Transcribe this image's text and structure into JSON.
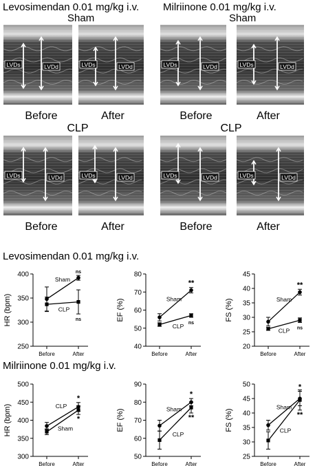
{
  "top": {
    "left_title": "Levosimendan 0.01 mg/kg i.v.",
    "right_title": "Milriinone 0.01 mg/kg i.v.",
    "sham_label": "Sham",
    "clp_label": "CLP",
    "before_label": "Before",
    "after_label": "After",
    "lvds_label": "LVDs",
    "lvdd_label": "LVDd"
  },
  "sections": [
    {
      "title": "Levosimendan 0.01 mg/kg i.v."
    },
    {
      "title": "Milriinone 0.01 mg/kg i.v."
    }
  ],
  "chart_data": [
    {
      "type": "line",
      "section": 0,
      "categories": [
        "Before",
        "After"
      ],
      "ylabel": "HR (bpm)",
      "ylim": [
        250,
        400
      ],
      "yticks": [
        250,
        300,
        350,
        400
      ],
      "series": [
        {
          "name": "Sham",
          "values": [
            348,
            392
          ],
          "err": [
            25,
            5
          ]
        },
        {
          "name": "CLP",
          "values": [
            337,
            342
          ],
          "err": [
            15,
            25
          ]
        }
      ],
      "annotations": [
        {
          "series": "Sham",
          "point": "After",
          "text": "ns"
        },
        {
          "series": "CLP",
          "point": "After",
          "text": "ns"
        }
      ]
    },
    {
      "type": "line",
      "section": 0,
      "categories": [
        "Before",
        "After"
      ],
      "ylabel": "EF (%)",
      "ylim": [
        40,
        80
      ],
      "yticks": [
        40,
        50,
        60,
        70,
        80
      ],
      "series": [
        {
          "name": "Sham",
          "values": [
            56,
            71
          ],
          "err": [
            2,
            1.5
          ]
        },
        {
          "name": "CLP",
          "values": [
            52,
            57
          ],
          "err": [
            1,
            1
          ]
        }
      ],
      "annotations": [
        {
          "series": "Sham",
          "point": "After",
          "text": "**"
        },
        {
          "series": "CLP",
          "point": "After",
          "text": "ns"
        }
      ]
    },
    {
      "type": "line",
      "section": 0,
      "categories": [
        "Before",
        "After"
      ],
      "ylabel": "FS (%)",
      "ylim": [
        20,
        45
      ],
      "yticks": [
        20,
        25,
        30,
        35,
        40,
        45
      ],
      "series": [
        {
          "name": "Sham",
          "values": [
            28.5,
            38.7
          ],
          "err": [
            1.5,
            1
          ]
        },
        {
          "name": "CLP",
          "values": [
            26,
            29
          ],
          "err": [
            0.5,
            0.8
          ]
        }
      ],
      "annotations": [
        {
          "series": "Sham",
          "point": "After",
          "text": "**"
        },
        {
          "series": "CLP",
          "point": "After",
          "text": "ns"
        }
      ]
    },
    {
      "type": "line",
      "section": 1,
      "categories": [
        "Before",
        "After"
      ],
      "ylabel": "HR (bpm)",
      "ylim": [
        300,
        500
      ],
      "yticks": [
        300,
        350,
        400,
        450,
        500
      ],
      "series": [
        {
          "name": "CLP",
          "values": [
            384,
            437
          ],
          "err": [
            10,
            12
          ]
        },
        {
          "name": "Sham",
          "values": [
            368,
            428
          ],
          "err": [
            8,
            12
          ]
        }
      ],
      "annotations": [
        {
          "series": "CLP",
          "point": "After",
          "text": "*"
        },
        {
          "series": "Sham",
          "point": "After",
          "text": "*"
        }
      ]
    },
    {
      "type": "line",
      "section": 1,
      "categories": [
        "Before",
        "After"
      ],
      "ylabel": "EF (%)",
      "ylim": [
        50,
        90
      ],
      "yticks": [
        50,
        60,
        70,
        80,
        90
      ],
      "series": [
        {
          "name": "Sham",
          "values": [
            67,
            80
          ],
          "err": [
            3,
            2
          ]
        },
        {
          "name": "CLP",
          "values": [
            59,
            77
          ],
          "err": [
            5,
            3
          ]
        }
      ],
      "annotations": [
        {
          "series": "Sham",
          "point": "After",
          "text": "*"
        },
        {
          "series": "CLP",
          "point": "After",
          "text": "**"
        }
      ]
    },
    {
      "type": "line",
      "section": 1,
      "categories": [
        "Before",
        "After"
      ],
      "ylabel": "FS (%)",
      "ylim": [
        25,
        50
      ],
      "yticks": [
        25,
        30,
        35,
        40,
        45,
        50
      ],
      "series": [
        {
          "name": "Sham",
          "values": [
            35.8,
            45
          ],
          "err": [
            1.7,
            2.5
          ]
        },
        {
          "name": "CLP",
          "values": [
            30.5,
            44.5
          ],
          "err": [
            3,
            3.5
          ]
        }
      ],
      "annotations": [
        {
          "series": "Sham",
          "point": "After",
          "text": "*"
        },
        {
          "series": "CLP",
          "point": "After",
          "text": "**"
        }
      ]
    }
  ]
}
